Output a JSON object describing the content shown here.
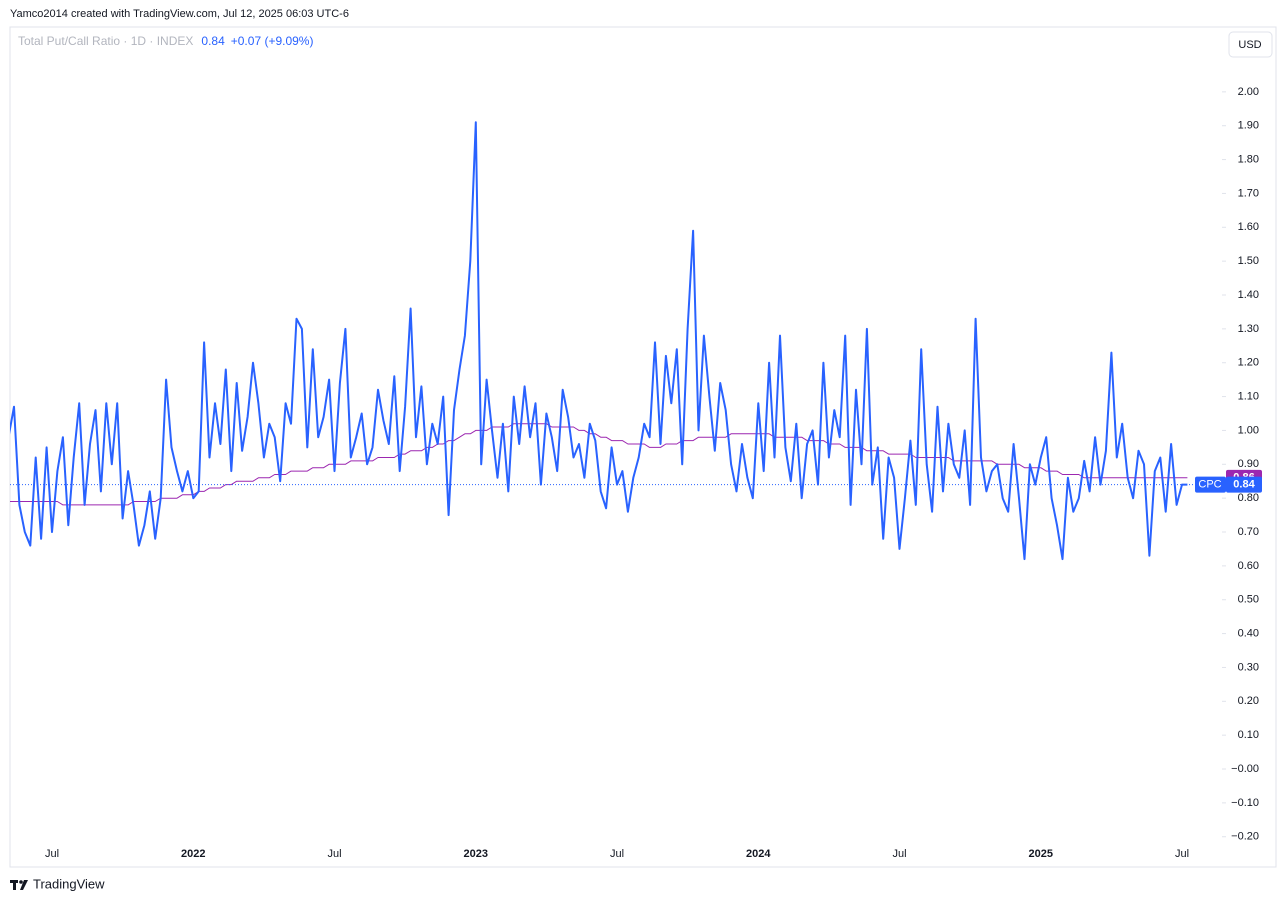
{
  "header": {
    "credit": "Yamco2014 created with TradingView.com, Jul 12, 2025 06:03 UTC-6",
    "currency": "USD",
    "footer": "TradingView"
  },
  "chart_data": {
    "type": "line",
    "legend": {
      "symbol": "Total Put/Call Ratio · 1D · INDEX",
      "last": "0.84",
      "change": "+0.07 (+9.09%)"
    },
    "categories": [
      null,
      null,
      null,
      null,
      null,
      null,
      null,
      null,
      "Jul",
      null,
      null,
      null,
      null,
      null,
      null,
      null,
      null,
      null,
      null,
      null,
      null,
      null,
      null,
      null,
      null,
      null,
      null,
      null,
      null,
      null,
      null,
      null,
      null,
      null,
      "2022",
      null,
      null,
      null,
      null,
      null,
      null,
      null,
      null,
      null,
      null,
      null,
      null,
      null,
      null,
      null,
      null,
      null,
      null,
      null,
      null,
      null,
      null,
      null,
      null,
      null,
      "Jul",
      null,
      null,
      null,
      null,
      null,
      null,
      null,
      null,
      null,
      null,
      null,
      null,
      null,
      null,
      null,
      null,
      null,
      null,
      null,
      null,
      null,
      null,
      null,
      null,
      null,
      "2023",
      null,
      null,
      null,
      null,
      null,
      null,
      null,
      null,
      null,
      null,
      null,
      null,
      null,
      null,
      null,
      null,
      null,
      null,
      null,
      null,
      null,
      null,
      null,
      null,
      null,
      "Jul",
      null,
      null,
      null,
      null,
      null,
      null,
      null,
      null,
      null,
      null,
      null,
      null,
      null,
      null,
      null,
      null,
      null,
      null,
      null,
      null,
      null,
      null,
      null,
      null,
      null,
      "2024",
      null,
      null,
      null,
      null,
      null,
      null,
      null,
      null,
      null,
      null,
      null,
      null,
      null,
      null,
      null,
      null,
      null,
      null,
      null,
      null,
      null,
      null,
      null,
      null,
      null,
      "Jul",
      null,
      null,
      null,
      null,
      null,
      null,
      null,
      null,
      null,
      null,
      null,
      null,
      null,
      null,
      null,
      null,
      null,
      null,
      null,
      null,
      null,
      null,
      null,
      null,
      null,
      "2025",
      null,
      null,
      null,
      null,
      null,
      null,
      null,
      null,
      null,
      null,
      null,
      null,
      null,
      null,
      null,
      null,
      null,
      null,
      null,
      null,
      null,
      null,
      null,
      null,
      null,
      "Jul",
      null
    ],
    "series": [
      {
        "name": "CPC",
        "color": "#2962ff",
        "values": [
          0.98,
          1.07,
          0.78,
          0.7,
          0.66,
          0.92,
          0.68,
          0.95,
          0.7,
          0.88,
          0.98,
          0.72,
          0.92,
          1.08,
          0.78,
          0.96,
          1.06,
          0.82,
          1.08,
          0.9,
          1.08,
          0.74,
          0.88,
          0.78,
          0.66,
          0.72,
          0.82,
          0.68,
          0.8,
          1.15,
          0.95,
          0.88,
          0.82,
          0.88,
          0.8,
          0.82,
          1.26,
          0.92,
          1.08,
          0.96,
          1.18,
          0.88,
          1.14,
          0.94,
          1.04,
          1.2,
          1.08,
          0.92,
          1.02,
          0.98,
          0.85,
          1.08,
          1.02,
          1.33,
          1.3,
          0.95,
          1.24,
          0.98,
          1.04,
          1.15,
          0.88,
          1.14,
          1.3,
          0.92,
          0.98,
          1.05,
          0.9,
          0.95,
          1.12,
          1.03,
          0.96,
          1.16,
          0.88,
          1.07,
          1.36,
          0.98,
          1.13,
          0.9,
          1.02,
          0.96,
          1.1,
          0.75,
          1.06,
          1.18,
          1.28,
          1.5,
          1.91,
          0.9,
          1.15,
          1.0,
          0.86,
          1.02,
          0.82,
          1.1,
          0.96,
          1.13,
          0.98,
          1.08,
          0.84,
          1.05,
          0.98,
          0.88,
          1.12,
          1.04,
          0.92,
          0.96,
          0.86,
          1.02,
          0.97,
          0.82,
          0.77,
          0.95,
          0.84,
          0.88,
          0.76,
          0.86,
          0.92,
          1.02,
          0.98,
          1.26,
          0.96,
          1.22,
          1.08,
          1.24,
          0.9,
          1.3,
          1.59,
          1.0,
          1.28,
          1.1,
          0.94,
          1.14,
          1.06,
          0.9,
          0.82,
          0.96,
          0.86,
          0.8,
          1.08,
          0.88,
          1.2,
          0.92,
          1.28,
          0.95,
          0.85,
          1.02,
          0.8,
          0.96,
          1.0,
          0.84,
          1.2,
          0.92,
          1.06,
          0.98,
          1.28,
          0.78,
          1.12,
          0.9,
          1.3,
          0.84,
          0.95,
          0.68,
          0.92,
          0.86,
          0.65,
          0.8,
          0.97,
          0.78,
          1.24,
          0.9,
          0.76,
          1.07,
          0.82,
          1.02,
          0.9,
          0.86,
          1.0,
          0.78,
          1.33,
          0.92,
          0.82,
          0.88,
          0.9,
          0.8,
          0.76,
          0.96,
          0.8,
          0.62,
          0.9,
          0.84,
          0.92,
          0.98,
          0.8,
          0.72,
          0.62,
          0.86,
          0.76,
          0.8,
          0.91,
          0.82,
          0.98,
          0.84,
          0.94,
          1.23,
          0.92,
          1.02,
          0.86,
          0.8,
          0.94,
          0.9,
          0.63,
          0.88,
          0.92,
          0.76,
          0.96,
          0.78,
          0.84,
          0.84
        ]
      },
      {
        "color": "#9c27b0",
        "values": [
          0.79,
          0.79,
          0.79,
          0.79,
          0.79,
          0.79,
          0.79,
          0.79,
          0.79,
          0.79,
          0.78,
          0.78,
          0.78,
          0.78,
          0.78,
          0.78,
          0.78,
          0.78,
          0.78,
          0.78,
          0.78,
          0.78,
          0.78,
          0.79,
          0.79,
          0.79,
          0.79,
          0.79,
          0.8,
          0.8,
          0.8,
          0.8,
          0.81,
          0.81,
          0.81,
          0.82,
          0.82,
          0.83,
          0.83,
          0.83,
          0.84,
          0.84,
          0.85,
          0.85,
          0.85,
          0.85,
          0.86,
          0.86,
          0.86,
          0.87,
          0.87,
          0.87,
          0.88,
          0.88,
          0.88,
          0.88,
          0.89,
          0.89,
          0.89,
          0.9,
          0.9,
          0.9,
          0.9,
          0.91,
          0.91,
          0.91,
          0.91,
          0.91,
          0.92,
          0.92,
          0.92,
          0.92,
          0.93,
          0.93,
          0.94,
          0.94,
          0.94,
          0.95,
          0.95,
          0.96,
          0.96,
          0.97,
          0.97,
          0.98,
          0.99,
          0.99,
          1.0,
          1.0,
          1.0,
          1.01,
          1.01,
          1.01,
          1.01,
          1.02,
          1.02,
          1.02,
          1.02,
          1.02,
          1.02,
          1.02,
          1.01,
          1.01,
          1.01,
          1.01,
          1.01,
          1.0,
          1.0,
          0.99,
          0.99,
          0.98,
          0.98,
          0.97,
          0.97,
          0.97,
          0.96,
          0.96,
          0.96,
          0.96,
          0.95,
          0.95,
          0.95,
          0.96,
          0.96,
          0.96,
          0.97,
          0.97,
          0.97,
          0.98,
          0.98,
          0.98,
          0.98,
          0.98,
          0.98,
          0.99,
          0.99,
          0.99,
          0.99,
          0.99,
          0.99,
          0.99,
          0.99,
          0.98,
          0.98,
          0.98,
          0.98,
          0.98,
          0.98,
          0.97,
          0.97,
          0.97,
          0.97,
          0.96,
          0.96,
          0.96,
          0.95,
          0.95,
          0.95,
          0.95,
          0.94,
          0.94,
          0.94,
          0.94,
          0.93,
          0.93,
          0.93,
          0.93,
          0.93,
          0.92,
          0.92,
          0.92,
          0.92,
          0.92,
          0.92,
          0.92,
          0.91,
          0.91,
          0.91,
          0.91,
          0.91,
          0.91,
          0.91,
          0.91,
          0.9,
          0.9,
          0.9,
          0.9,
          0.9,
          0.89,
          0.89,
          0.89,
          0.89,
          0.88,
          0.88,
          0.88,
          0.87,
          0.87,
          0.87,
          0.87,
          0.86,
          0.86,
          0.86,
          0.86,
          0.86,
          0.86,
          0.86,
          0.86,
          0.86,
          0.86,
          0.86,
          0.86,
          0.86,
          0.86,
          0.86,
          0.86,
          0.86,
          0.86,
          0.86,
          0.86
        ]
      }
    ],
    "ylim": [
      -0.22,
      2.1
    ],
    "yticks": [
      {
        "value": -0.2,
        "label": "−0.20"
      },
      {
        "value": -0.1,
        "label": "−0.10"
      },
      {
        "value": 0,
        "label": "−0.00"
      },
      {
        "value": 0.1,
        "label": "0.10"
      },
      {
        "value": 0.2,
        "label": "0.20"
      },
      {
        "value": 0.3,
        "label": "0.30"
      },
      {
        "value": 0.4,
        "label": "0.40"
      },
      {
        "value": 0.5,
        "label": "0.50"
      },
      {
        "value": 0.6,
        "label": "0.60"
      },
      {
        "value": 0.7,
        "label": "0.70"
      },
      {
        "value": 0.8,
        "label": "0.80"
      },
      {
        "value": 0.9,
        "label": "0.90"
      },
      {
        "value": 1,
        "label": "1.00"
      },
      {
        "value": 1.1,
        "label": "1.10"
      },
      {
        "value": 1.2,
        "label": "1.20"
      },
      {
        "value": 1.3,
        "label": "1.30"
      },
      {
        "value": 1.4,
        "label": "1.40"
      },
      {
        "value": 1.5,
        "label": "1.50"
      },
      {
        "value": 1.6,
        "label": "1.60"
      },
      {
        "value": 1.7,
        "label": "1.70"
      },
      {
        "value": 1.8,
        "label": "1.80"
      },
      {
        "value": 1.9,
        "label": "1.90"
      },
      {
        "value": 2,
        "label": "2.00"
      }
    ],
    "grid": false
  }
}
